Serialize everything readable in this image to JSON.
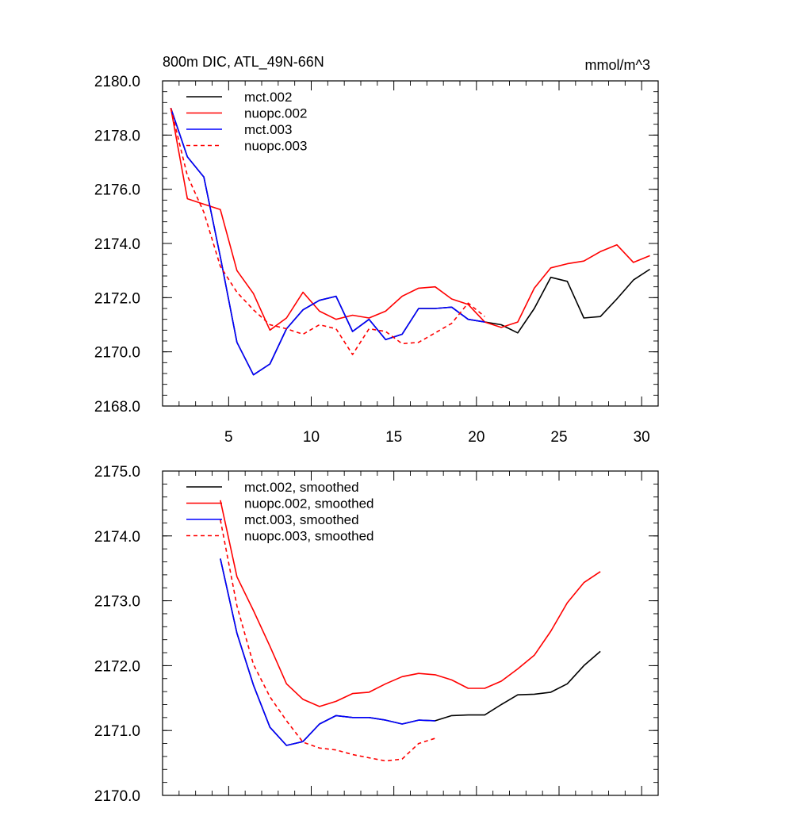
{
  "chart_data": [
    {
      "type": "line",
      "title": "800m DIC, ATL_49N-66N",
      "units": "mmol/m^3",
      "xlim": [
        1,
        31
      ],
      "ylim": [
        2168.0,
        2180.0
      ],
      "xticks": [
        5,
        10,
        15,
        20,
        25,
        30
      ],
      "xtick_labels": [
        "5",
        "10",
        "15",
        "20",
        "25",
        "30"
      ],
      "yticks": [
        2168.0,
        2170.0,
        2172.0,
        2174.0,
        2176.0,
        2178.0,
        2180.0
      ],
      "ytick_labels": [
        "2168.0",
        "2170.0",
        "2172.0",
        "2174.0",
        "2176.0",
        "2178.0",
        "2180.0"
      ],
      "legend_position": "top-left",
      "series": [
        {
          "name": "mct.002",
          "color": "#000000",
          "dash": "solid",
          "x": [
            1.5,
            2.5,
            3.5,
            4.5,
            5.5,
            6.5,
            7.5,
            8.5,
            9.5,
            10.5,
            11.5,
            12.5,
            13.5,
            14.5,
            15.5,
            16.5,
            17.5,
            18.5,
            19.5,
            20.5,
            21.5,
            22.5,
            23.5,
            24.5,
            25.5,
            26.5,
            27.5,
            28.5,
            29.5,
            30.5
          ],
          "y": [
            2179.0,
            2177.2,
            2176.45,
            2173.5,
            2170.35,
            2169.15,
            2169.55,
            2170.85,
            2171.55,
            2171.9,
            2172.05,
            2170.75,
            2171.2,
            2170.45,
            2170.65,
            2171.6,
            2171.6,
            2171.65,
            2171.2,
            2171.1,
            2171.0,
            2170.7,
            2171.6,
            2172.75,
            2172.6,
            2171.25,
            2171.3,
            2171.95,
            2172.65,
            2173.05
          ]
        },
        {
          "name": "nuopc.002",
          "color": "#ff0000",
          "dash": "solid",
          "x": [
            1.5,
            2.5,
            3.5,
            4.5,
            5.5,
            6.5,
            7.5,
            8.5,
            9.5,
            10.5,
            11.5,
            12.5,
            13.5,
            14.5,
            15.5,
            16.5,
            17.5,
            18.5,
            19.5,
            20.5,
            21.5,
            22.5,
            23.5,
            24.5,
            25.5,
            26.5,
            27.5,
            28.5,
            29.5,
            30.5
          ],
          "y": [
            2179.0,
            2175.65,
            2175.45,
            2175.25,
            2173.0,
            2172.15,
            2170.8,
            2171.25,
            2172.2,
            2171.5,
            2171.2,
            2171.35,
            2171.25,
            2171.5,
            2172.05,
            2172.35,
            2172.4,
            2171.95,
            2171.75,
            2171.1,
            2170.9,
            2171.1,
            2172.35,
            2173.1,
            2173.25,
            2173.35,
            2173.7,
            2173.95,
            2173.3,
            2173.55
          ]
        },
        {
          "name": "mct.003",
          "color": "#0000ff",
          "dash": "solid",
          "x": [
            1.5,
            2.5,
            3.5,
            4.5,
            5.5,
            6.5,
            7.5,
            8.5,
            9.5,
            10.5,
            11.5,
            12.5,
            13.5,
            14.5,
            15.5,
            16.5,
            17.5,
            18.5,
            19.5,
            20.5
          ],
          "y": [
            2179.0,
            2177.2,
            2176.45,
            2173.5,
            2170.35,
            2169.15,
            2169.55,
            2170.85,
            2171.55,
            2171.9,
            2172.05,
            2170.75,
            2171.2,
            2170.45,
            2170.65,
            2171.6,
            2171.6,
            2171.65,
            2171.2,
            2171.1
          ]
        },
        {
          "name": "nuopc.003",
          "color": "#ff0000",
          "dash": "dashed",
          "x": [
            1.5,
            2.5,
            3.5,
            4.5,
            5.5,
            6.5,
            7.5,
            8.5,
            9.5,
            10.5,
            11.5,
            12.5,
            13.5,
            14.5,
            15.5,
            16.5,
            17.5,
            18.5,
            19.5,
            20.5
          ],
          "y": [
            2179.0,
            2176.5,
            2175.15,
            2173.15,
            2172.2,
            2171.55,
            2171.0,
            2170.85,
            2170.65,
            2171.0,
            2170.85,
            2169.9,
            2170.85,
            2170.75,
            2170.3,
            2170.35,
            2170.7,
            2171.05,
            2171.8,
            2171.3
          ]
        }
      ]
    },
    {
      "type": "line",
      "xlim": [
        1,
        31
      ],
      "ylim": [
        2170.0,
        2175.0
      ],
      "xticks": [
        5,
        10,
        15,
        20,
        25,
        30
      ],
      "yticks": [
        2170.0,
        2171.0,
        2172.0,
        2173.0,
        2174.0,
        2175.0
      ],
      "ytick_labels": [
        "2170.0",
        "2171.0",
        "2172.0",
        "2173.0",
        "2174.0",
        "2175.0"
      ],
      "legend_position": "top-left",
      "series": [
        {
          "name": "mct.002, smoothed",
          "color": "#000000",
          "dash": "solid",
          "x": [
            4.5,
            5.5,
            6.5,
            7.5,
            8.5,
            9.5,
            10.5,
            11.5,
            12.5,
            13.5,
            14.5,
            15.5,
            16.5,
            17.5,
            18.5,
            19.5,
            20.5,
            21.5,
            22.5,
            23.5,
            24.5,
            25.5,
            26.5,
            27.5
          ],
          "y": [
            2173.65,
            2172.5,
            2171.7,
            2171.05,
            2170.77,
            2170.83,
            2171.1,
            2171.23,
            2171.2,
            2171.2,
            2171.16,
            2171.1,
            2171.16,
            2171.15,
            2171.23,
            2171.24,
            2171.24,
            2171.4,
            2171.55,
            2171.56,
            2171.59,
            2171.72,
            2172.0,
            2172.22
          ]
        },
        {
          "name": "nuopc.002, smoothed",
          "color": "#ff0000",
          "dash": "solid",
          "x": [
            4.5,
            5.5,
            6.5,
            7.5,
            8.5,
            9.5,
            10.5,
            11.5,
            12.5,
            13.5,
            14.5,
            15.5,
            16.5,
            17.5,
            18.5,
            19.5,
            20.5,
            21.5,
            22.5,
            23.5,
            24.5,
            25.5,
            26.5,
            27.5
          ],
          "y": [
            2174.55,
            2173.37,
            2172.85,
            2172.3,
            2171.72,
            2171.48,
            2171.37,
            2171.45,
            2171.57,
            2171.59,
            2171.72,
            2171.83,
            2171.88,
            2171.86,
            2171.78,
            2171.65,
            2171.65,
            2171.76,
            2171.95,
            2172.16,
            2172.53,
            2172.97,
            2173.28,
            2173.45
          ]
        },
        {
          "name": "mct.003, smoothed",
          "color": "#0000ff",
          "dash": "solid",
          "x": [
            4.5,
            5.5,
            6.5,
            7.5,
            8.5,
            9.5,
            10.5,
            11.5,
            12.5,
            13.5,
            14.5,
            15.5,
            16.5,
            17.5
          ],
          "y": [
            2173.65,
            2172.5,
            2171.7,
            2171.05,
            2170.77,
            2170.83,
            2171.1,
            2171.23,
            2171.2,
            2171.2,
            2171.16,
            2171.1,
            2171.16,
            2171.15
          ]
        },
        {
          "name": "nuopc.003, smoothed",
          "color": "#ff0000",
          "dash": "dashed",
          "x": [
            4.5,
            5.5,
            6.5,
            7.5,
            8.5,
            9.5,
            10.5,
            11.5,
            12.5,
            13.5,
            14.5,
            15.5,
            16.5,
            17.5
          ],
          "y": [
            2174.25,
            2172.92,
            2172.02,
            2171.52,
            2171.15,
            2170.82,
            2170.73,
            2170.7,
            2170.63,
            2170.58,
            2170.53,
            2170.56,
            2170.8,
            2170.88
          ]
        }
      ]
    }
  ]
}
